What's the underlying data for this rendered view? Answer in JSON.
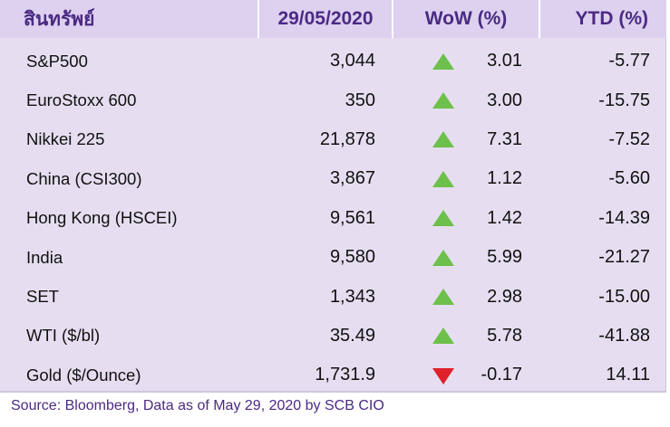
{
  "header": {
    "asset": "สินทรัพย์",
    "date": "29/05/2020",
    "wow": "WoW (%)",
    "ytd": "YTD (%)"
  },
  "rows": [
    {
      "name": "S&P500",
      "value": "3,044",
      "direction": "up",
      "wow": "3.01",
      "ytd": "-5.77"
    },
    {
      "name": "EuroStoxx 600",
      "value": "350",
      "direction": "up",
      "wow": "3.00",
      "ytd": "-15.75"
    },
    {
      "name": "Nikkei 225",
      "value": "21,878",
      "direction": "up",
      "wow": "7.31",
      "ytd": "-7.52"
    },
    {
      "name": "China (CSI300)",
      "value": "3,867",
      "direction": "up",
      "wow": "1.12",
      "ytd": "-5.60"
    },
    {
      "name": "Hong Kong (HSCEI)",
      "value": "9,561",
      "direction": "up",
      "wow": "1.42",
      "ytd": "-14.39"
    },
    {
      "name": "India",
      "value": "9,580",
      "direction": "up",
      "wow": "5.99",
      "ytd": "-21.27"
    },
    {
      "name": "SET",
      "value": "1,343",
      "direction": "up",
      "wow": "2.98",
      "ytd": "-15.00"
    },
    {
      "name": "WTI ($/bl)",
      "value": "35.49",
      "direction": "up",
      "wow": "5.78",
      "ytd": "-41.88"
    },
    {
      "name": "Gold ($/Ounce)",
      "value": "1,731.9",
      "direction": "down",
      "wow": "-0.17",
      "ytd": "14.11"
    }
  ],
  "source": "Source: Bloomberg, Data as of May 29, 2020 by SCB CIO",
  "colors": {
    "up": "#6dc04b",
    "down": "#e0202a",
    "header_text": "#4b2a83",
    "body_bg": "#e6def0",
    "header_bg": "#ddd1ef"
  }
}
